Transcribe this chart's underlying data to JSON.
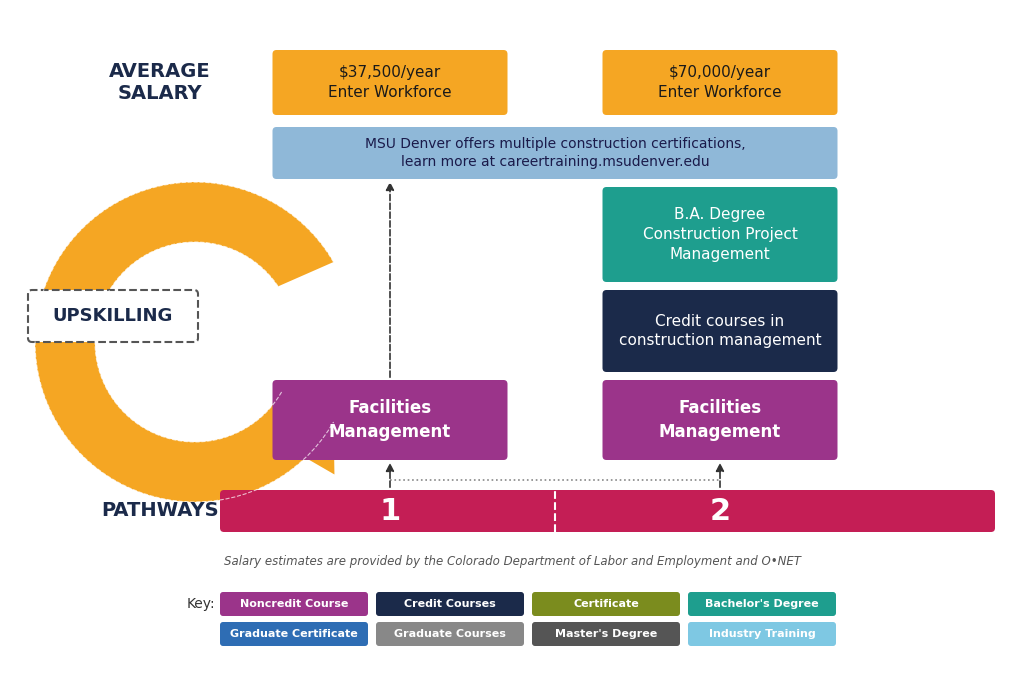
{
  "bg_color": "#ffffff",
  "title_avg_salary": "AVERAGE\nSALARY",
  "title_pathways": "PATHWAYS",
  "upskilling_label": "UPSKILLING",
  "salary1_line1": "$37,500/year",
  "salary1_line2": "Enter Workforce",
  "salary2_line1": "$70,000/year",
  "salary2_line2": "Enter Workforce",
  "salary_color": "#F5A623",
  "msu_text": "MSU Denver offers multiple construction certifications,\nlearn more at careertraining.msudenver.edu",
  "msu_color": "#8FB8D8",
  "ba_text": "B.A. Degree\nConstruction Project\nManagement",
  "ba_color": "#1E9E8E",
  "credit_text": "Credit courses in\nconstruction management",
  "credit_color": "#1B2A4A",
  "fm1_text": "Facilities\nManagement",
  "fm2_text": "Facilities\nManagement",
  "fm_color": "#9B348A",
  "pathways_color": "#C41E55",
  "pathway1_label": "1",
  "pathway2_label": "2",
  "avg_salary_color": "#1B2A4A",
  "pathways_label_color": "#1B2A4A",
  "footer_text": "Salary estimates are provided by the Colorado Department of Labor and Employment and O•NET",
  "key_items": [
    {
      "label": "Noncredit Course",
      "color": "#9B348A"
    },
    {
      "label": "Credit Courses",
      "color": "#1B2A4A"
    },
    {
      "label": "Certificate",
      "color": "#7B8C1E"
    },
    {
      "label": "Bachelor's Degree",
      "color": "#1E9E8E"
    },
    {
      "label": "Graduate Certificate",
      "color": "#2E6DB4"
    },
    {
      "label": "Graduate Courses",
      "color": "#888888"
    },
    {
      "label": "Master's Degree",
      "color": "#555555"
    },
    {
      "label": "Industry Training",
      "color": "#7EC8E3"
    }
  ],
  "arrow_color": "#F5A623"
}
